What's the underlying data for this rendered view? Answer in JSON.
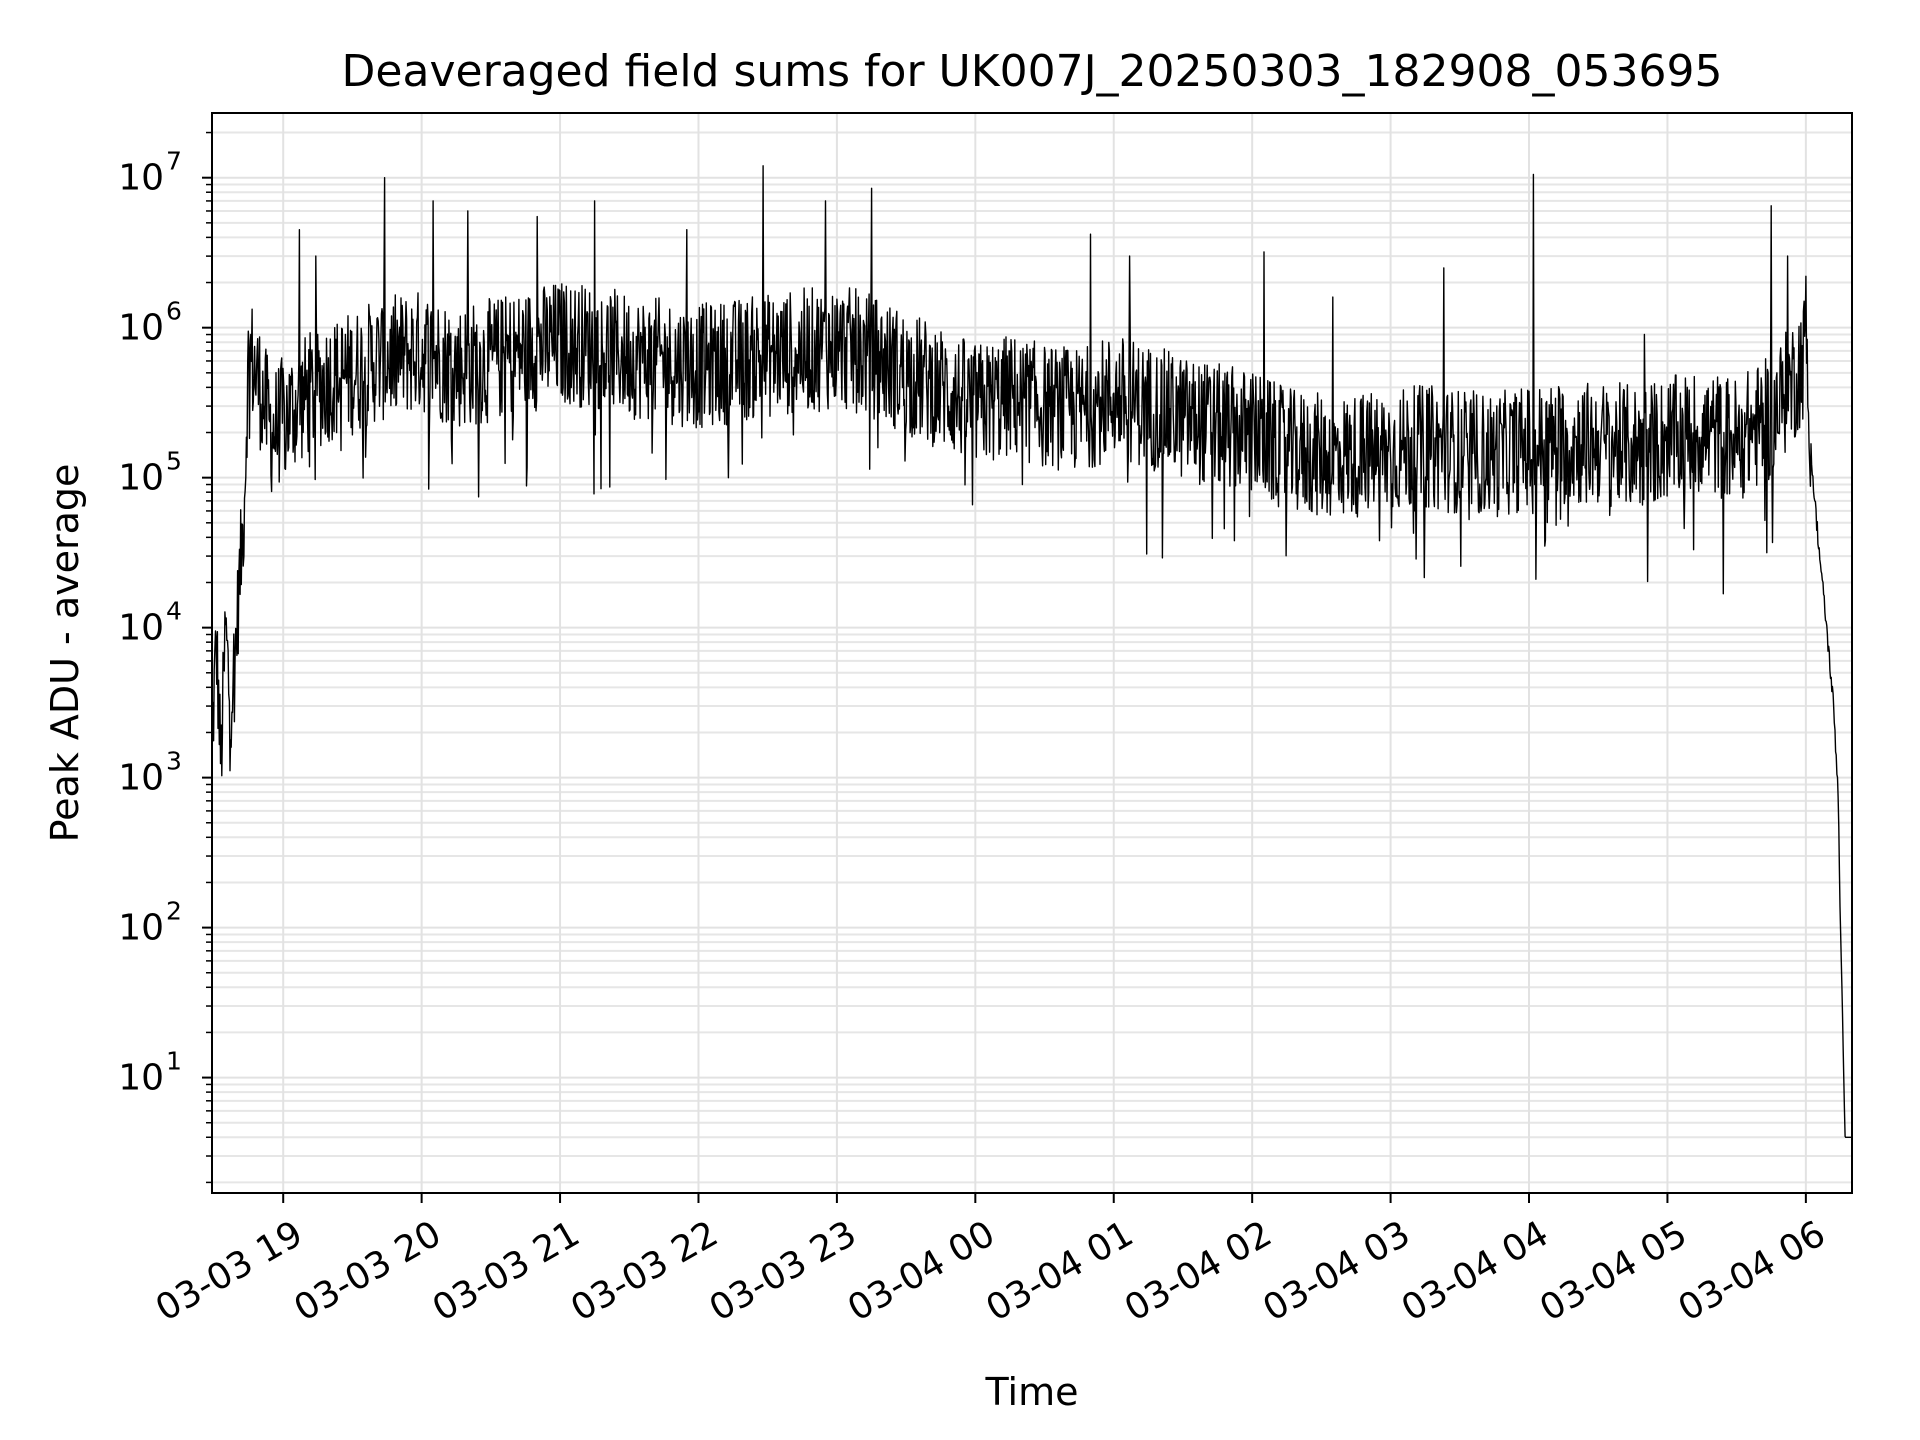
{
  "chart_data": {
    "type": "line",
    "title": "Deaveraged field sums for UK007J_20250303_182908_053695",
    "xlabel": "Time",
    "ylabel": "Peak ADU - average",
    "yscale": "log",
    "ylim": [
      1.7,
      27000000
    ],
    "xlim": [
      "2025-03-03 18:29:08",
      "2025-03-04 06:20:00"
    ],
    "grid": true,
    "line_color": "#000000",
    "x_ticks": [
      {
        "time": "2025-03-03 19:00",
        "label": "03-03 19"
      },
      {
        "time": "2025-03-03 20:00",
        "label": "03-03 20"
      },
      {
        "time": "2025-03-03 21:00",
        "label": "03-03 21"
      },
      {
        "time": "2025-03-03 22:00",
        "label": "03-03 22"
      },
      {
        "time": "2025-03-03 23:00",
        "label": "03-03 23"
      },
      {
        "time": "2025-03-04 00:00",
        "label": "03-04 00"
      },
      {
        "time": "2025-03-04 01:00",
        "label": "03-04 01"
      },
      {
        "time": "2025-03-04 02:00",
        "label": "03-04 02"
      },
      {
        "time": "2025-03-04 03:00",
        "label": "03-04 03"
      },
      {
        "time": "2025-03-04 04:00",
        "label": "03-04 04"
      },
      {
        "time": "2025-03-04 05:00",
        "label": "03-04 05"
      },
      {
        "time": "2025-03-04 06:00",
        "label": "03-04 06"
      }
    ],
    "y_ticks": [
      {
        "value": 10,
        "base": "10",
        "exp": "1"
      },
      {
        "value": 100,
        "base": "10",
        "exp": "2"
      },
      {
        "value": 1000,
        "base": "10",
        "exp": "3"
      },
      {
        "value": 10000,
        "base": "10",
        "exp": "4"
      },
      {
        "value": 100000,
        "base": "10",
        "exp": "5"
      },
      {
        "value": 1000000,
        "base": "10",
        "exp": "6"
      },
      {
        "value": 10000000,
        "base": "10",
        "exp": "7"
      }
    ],
    "series": [
      {
        "x": [
          "2025-03-03 18:29",
          "2025-03-03 18:31",
          "2025-03-03 18:33",
          "2025-03-03 18:35",
          "2025-03-03 18:37",
          "2025-03-03 18:39",
          "2025-03-03 18:41",
          "2025-03-03 18:43",
          "2025-03-03 18:45",
          "2025-03-03 18:50",
          "2025-03-03 18:55",
          "2025-03-03 19:00",
          "2025-03-03 19:10",
          "2025-03-03 19:20",
          "2025-03-03 19:30",
          "2025-03-03 19:40",
          "2025-03-03 19:50",
          "2025-03-03 20:00",
          "2025-03-03 20:15",
          "2025-03-03 20:30",
          "2025-03-03 20:45",
          "2025-03-03 21:00",
          "2025-03-03 21:15",
          "2025-03-03 21:30",
          "2025-03-03 21:45",
          "2025-03-03 22:00",
          "2025-03-03 22:15",
          "2025-03-03 22:30",
          "2025-03-03 22:45",
          "2025-03-03 23:00",
          "2025-03-03 23:15",
          "2025-03-03 23:30",
          "2025-03-03 23:45",
          "2025-03-04 00:00",
          "2025-03-04 00:15",
          "2025-03-04 00:30",
          "2025-03-04 00:45",
          "2025-03-04 01:00",
          "2025-03-04 01:15",
          "2025-03-04 01:30",
          "2025-03-04 01:45",
          "2025-03-04 02:00",
          "2025-03-04 02:15",
          "2025-03-04 02:30",
          "2025-03-04 02:45",
          "2025-03-04 03:00",
          "2025-03-04 03:15",
          "2025-03-04 03:30",
          "2025-03-04 03:45",
          "2025-03-04 04:00",
          "2025-03-04 04:15",
          "2025-03-04 04:30",
          "2025-03-04 04:45",
          "2025-03-04 05:00",
          "2025-03-04 05:15",
          "2025-03-04 05:30",
          "2025-03-04 05:45",
          "2025-03-04 05:55",
          "2025-03-04 06:00",
          "2025-03-04 06:03",
          "2025-03-04 06:06",
          "2025-03-04 06:09",
          "2025-03-04 06:12",
          "2025-03-04 06:14",
          "2025-03-04 06:15",
          "2025-03-04 06:17",
          "2025-03-04 06:20"
        ],
        "y": [
          1500,
          8000,
          1200,
          10000,
          3000,
          6000,
          20000,
          60000,
          700000,
          400000,
          200000,
          250000,
          350000,
          450000,
          500000,
          600000,
          650000,
          700000,
          550000,
          600000,
          700000,
          800000,
          750000,
          650000,
          600000,
          550000,
          600000,
          650000,
          700000,
          750000,
          650000,
          500000,
          400000,
          300000,
          350000,
          300000,
          280000,
          350000,
          300000,
          250000,
          220000,
          200000,
          150000,
          140000,
          140000,
          150000,
          160000,
          150000,
          140000,
          160000,
          170000,
          170000,
          160000,
          180000,
          200000,
          180000,
          250000,
          450000,
          700000,
          100000,
          30000,
          10000,
          3000,
          800,
          100,
          4,
          4
        ]
      }
    ],
    "spikes": [
      {
        "x": "2025-03-03 19:07",
        "y": 4500000
      },
      {
        "x": "2025-03-03 19:14",
        "y": 3000000
      },
      {
        "x": "2025-03-03 19:44",
        "y": 10000000
      },
      {
        "x": "2025-03-03 20:05",
        "y": 7000000
      },
      {
        "x": "2025-03-03 20:20",
        "y": 6000000
      },
      {
        "x": "2025-03-03 20:50",
        "y": 5500000
      },
      {
        "x": "2025-03-03 21:15",
        "y": 7000000
      },
      {
        "x": "2025-03-03 21:55",
        "y": 4500000
      },
      {
        "x": "2025-03-03 22:28",
        "y": 12000000
      },
      {
        "x": "2025-03-03 22:55",
        "y": 7000000
      },
      {
        "x": "2025-03-03 23:15",
        "y": 8500000
      },
      {
        "x": "2025-03-04 00:50",
        "y": 4200000
      },
      {
        "x": "2025-03-04 01:07",
        "y": 3000000
      },
      {
        "x": "2025-03-04 02:05",
        "y": 3200000
      },
      {
        "x": "2025-03-04 02:35",
        "y": 1600000
      },
      {
        "x": "2025-03-04 03:23",
        "y": 2500000
      },
      {
        "x": "2025-03-04 04:02",
        "y": 10500000
      },
      {
        "x": "2025-03-04 04:50",
        "y": 900000
      },
      {
        "x": "2025-03-04 05:45",
        "y": 6500000
      },
      {
        "x": "2025-03-04 05:52",
        "y": 3000000
      },
      {
        "x": "2025-03-04 06:00",
        "y": 2200000
      }
    ]
  }
}
